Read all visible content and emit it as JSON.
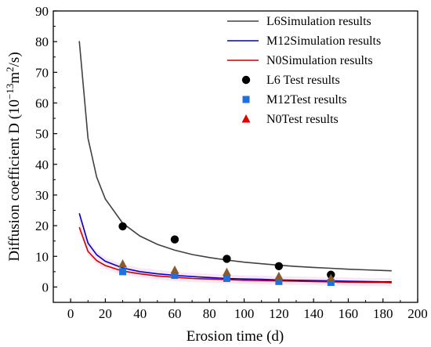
{
  "chart_data": {
    "type": "line",
    "xlabel": "Erosion time (d)",
    "ylabel_main": "Diffusion coefficient D (10",
    "ylabel_exp1": "−13",
    "ylabel_mid": "m",
    "ylabel_exp2": "2",
    "ylabel_end": "/s)",
    "xlim": [
      -10,
      200
    ],
    "ylim": [
      -5,
      90
    ],
    "xticks": [
      0,
      20,
      40,
      60,
      80,
      100,
      120,
      140,
      160,
      180,
      200
    ],
    "yticks": [
      0,
      10,
      20,
      30,
      40,
      50,
      60,
      70,
      80,
      90
    ],
    "grid": false,
    "legend_position": "top-right",
    "series": [
      {
        "name": "L6Simulation results",
        "kind": "line",
        "color": "#404040",
        "x": [
          5,
          10,
          15,
          20,
          30,
          40,
          50,
          60,
          70,
          80,
          90,
          100,
          110,
          120,
          130,
          140,
          150,
          160,
          170,
          180,
          185
        ],
        "y": [
          80.2,
          48.5,
          35.8,
          28.7,
          20.8,
          16.6,
          13.9,
          12.0,
          10.6,
          9.6,
          8.8,
          8.1,
          7.6,
          7.1,
          6.7,
          6.4,
          6.1,
          5.8,
          5.6,
          5.4,
          5.3
        ]
      },
      {
        "name": "M12Simulation results",
        "kind": "line",
        "color": "#0000cc",
        "x": [
          5,
          10,
          15,
          20,
          30,
          40,
          50,
          60,
          70,
          80,
          90,
          100,
          110,
          120,
          130,
          140,
          150,
          160,
          170,
          180,
          185
        ],
        "y": [
          24.0,
          14.3,
          10.5,
          8.4,
          6.2,
          5.0,
          4.3,
          3.8,
          3.4,
          3.1,
          2.8,
          2.6,
          2.5,
          2.3,
          2.2,
          2.1,
          2.0,
          1.9,
          1.8,
          1.7,
          1.7
        ]
      },
      {
        "name": "N0Simulation results",
        "kind": "line",
        "color": "#cc0000",
        "x": [
          5,
          10,
          15,
          20,
          30,
          40,
          50,
          60,
          70,
          80,
          90,
          100,
          110,
          120,
          130,
          140,
          150,
          160,
          170,
          180,
          185
        ],
        "y": [
          19.5,
          11.6,
          8.6,
          7.0,
          5.2,
          4.3,
          3.6,
          3.2,
          2.8,
          2.6,
          2.4,
          2.2,
          2.1,
          2.0,
          1.9,
          1.8,
          1.7,
          1.6,
          1.5,
          1.5,
          1.4
        ]
      },
      {
        "name": "L6 Test results",
        "kind": "scatter",
        "marker": "circle",
        "color": "#000000",
        "x": [
          30,
          60,
          90,
          120,
          150
        ],
        "y": [
          19.8,
          15.5,
          9.2,
          6.8,
          4.0
        ]
      },
      {
        "name": "M12Test results",
        "kind": "scatter",
        "marker": "square",
        "color": "#1e6fe0",
        "x": [
          30,
          60,
          90,
          120,
          150
        ],
        "y": [
          5.0,
          3.8,
          2.8,
          1.8,
          1.5
        ]
      },
      {
        "name": "N0Test results",
        "kind": "scatter",
        "marker": "triangle",
        "color": "#e00000",
        "x": [
          30,
          60,
          90,
          120,
          150
        ],
        "y": [
          7.5,
          5.5,
          4.8,
          3.5,
          2.8
        ]
      }
    ]
  }
}
